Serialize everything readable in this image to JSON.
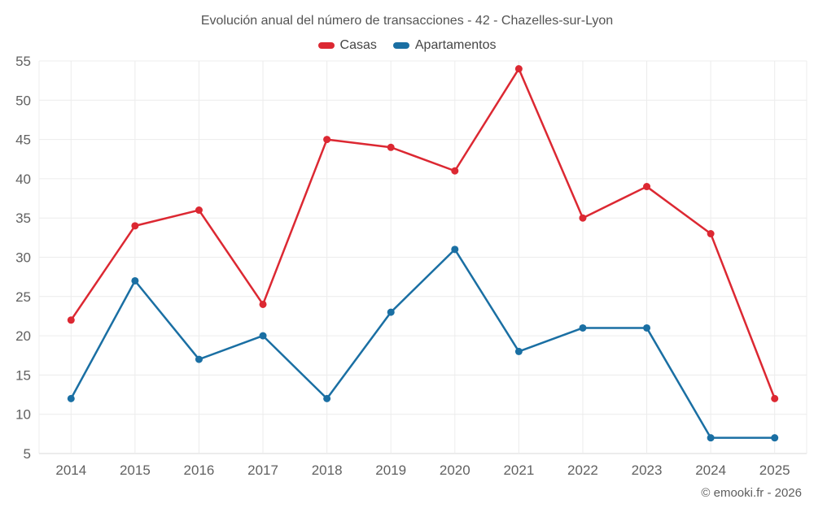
{
  "chart_data": {
    "type": "line",
    "title": "Evolución anual del número de transacciones - 42 - Chazelles-sur-Lyon",
    "x": [
      "2014",
      "2015",
      "2016",
      "2017",
      "2018",
      "2019",
      "2020",
      "2021",
      "2022",
      "2023",
      "2024",
      "2025"
    ],
    "series": [
      {
        "name": "Casas",
        "color": "#dc2832",
        "values": [
          22,
          34,
          36,
          24,
          45,
          44,
          41,
          54,
          35,
          39,
          33,
          12
        ]
      },
      {
        "name": "Apartamentos",
        "color": "#1a6fa3",
        "values": [
          12,
          27,
          17,
          20,
          12,
          23,
          31,
          18,
          21,
          21,
          7,
          7
        ]
      }
    ],
    "ylim": [
      5,
      55
    ],
    "ytick_step": 5,
    "yticks": [
      5,
      10,
      15,
      20,
      25,
      30,
      35,
      40,
      45,
      50,
      55
    ],
    "grid": true,
    "legend_position": "top",
    "colors": {
      "grid": "#ececec",
      "axis": "#d8d8d8",
      "tick_label": "#616161"
    }
  },
  "footer": {
    "credit": "© emooki.fr - 2026"
  }
}
